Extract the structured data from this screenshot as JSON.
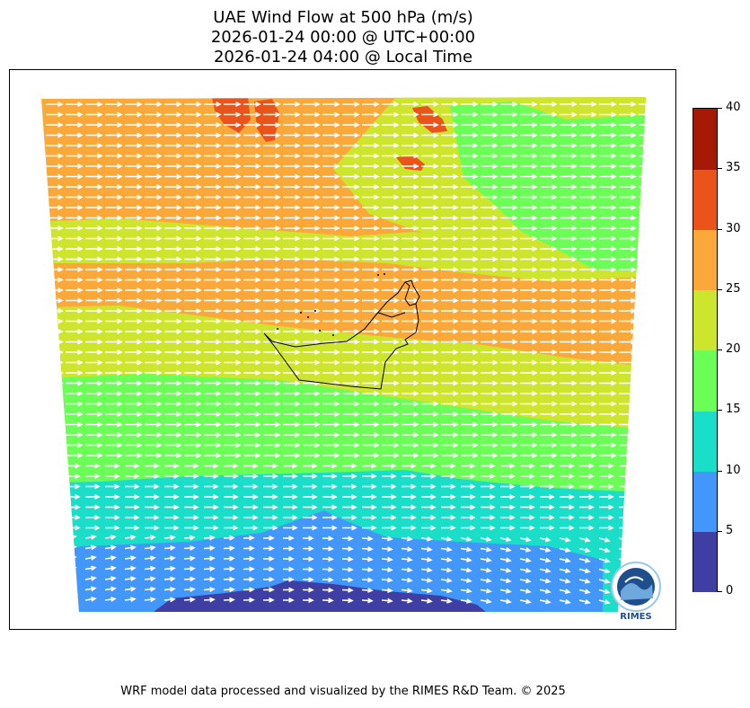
{
  "title": {
    "line1": "UAE Wind Flow at 500 hPa (m/s)",
    "line2": "2026-01-24 00:00 @ UTC+00:00",
    "line3": "2026-01-24 04:00 @ Local Time"
  },
  "colorbar": {
    "ticks": [
      "0",
      "5",
      "10",
      "15",
      "20",
      "25",
      "30",
      "35",
      "40"
    ],
    "colors": [
      "#3f3fa3",
      "#4497fa",
      "#1bdec9",
      "#6bfe56",
      "#cde52c",
      "#fba83a",
      "#ea5319",
      "#a51a05"
    ]
  },
  "logo": {
    "text": "RIMES"
  },
  "footer": "WRF model data processed and visualized by the RIMES R&D Team. © 2025",
  "colors": {
    "arrow": "#ffffff",
    "border": "#000000"
  }
}
